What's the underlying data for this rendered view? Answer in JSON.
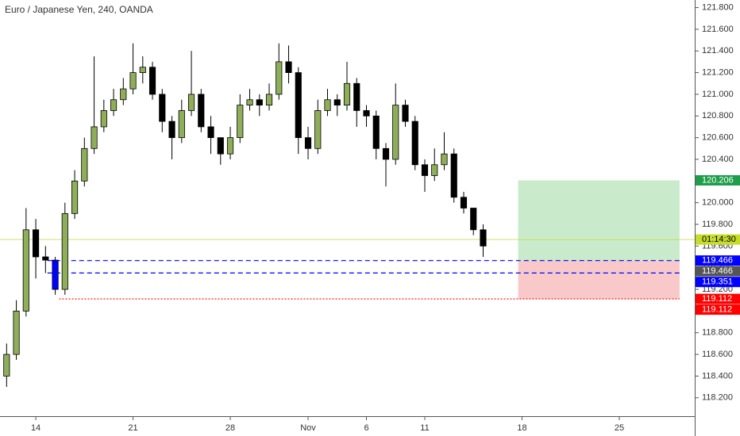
{
  "chart_data": {
    "type": "candlestick",
    "title": "Euro / Japanese Yen, 240, OANDA",
    "xlim": [
      -1.84,
      33.88
    ],
    "xticks": [
      {
        "value": 0,
        "label": "14"
      },
      {
        "value": 5,
        "label": "21"
      },
      {
        "value": 10,
        "label": "28"
      },
      {
        "value": 14,
        "label": "Nov"
      },
      {
        "value": 17,
        "label": "6"
      },
      {
        "value": 20,
        "label": "11"
      },
      {
        "value": 25,
        "label": "18"
      },
      {
        "value": 30,
        "label": "25"
      }
    ],
    "ylim": [
      118.03,
      121.87
    ],
    "yticks": [
      {
        "value": 118.2,
        "label": "118.200"
      },
      {
        "value": 118.4,
        "label": "118.400"
      },
      {
        "value": 118.6,
        "label": "118.600"
      },
      {
        "value": 118.8,
        "label": "118.800"
      },
      {
        "value": 119.0,
        "label": "119.000"
      },
      {
        "value": 119.2,
        "label": "119.200"
      },
      {
        "value": 119.4,
        "label": "119.400"
      },
      {
        "value": 119.6,
        "label": "119.600"
      },
      {
        "value": 119.8,
        "label": "119.800"
      },
      {
        "value": 120.0,
        "label": "120.000"
      },
      {
        "value": 120.2,
        "label": "120.200"
      },
      {
        "value": 120.4,
        "label": "120.400"
      },
      {
        "value": 120.6,
        "label": "120.600"
      },
      {
        "value": 120.8,
        "label": "120.800"
      },
      {
        "value": 121.0,
        "label": "121.000"
      },
      {
        "value": 121.2,
        "label": "121.200"
      },
      {
        "value": 121.4,
        "label": "121.400"
      },
      {
        "value": 121.6,
        "label": "121.600"
      },
      {
        "value": 121.8,
        "label": "121.800"
      }
    ],
    "up_color": "#8fae5a",
    "down_color": "#000000",
    "highlight": {
      "index": 5,
      "color": "#0000ff"
    },
    "x": [
      -1.5,
      -1,
      -0.5,
      0,
      0.5,
      1,
      1.5,
      2,
      2.5,
      3,
      3.5,
      4,
      4.5,
      5,
      5.5,
      6,
      6.5,
      7,
      7.5,
      8,
      8.5,
      9,
      9.5,
      10,
      10.5,
      11,
      11.5,
      12,
      12.5,
      13,
      13.5,
      14,
      14.5,
      15,
      15.5,
      16,
      16.5,
      17,
      17.5,
      18,
      18.5,
      19,
      19.5,
      20,
      20.5,
      21,
      21.5,
      22,
      22.5,
      23
    ],
    "open": [
      118.4,
      118.6,
      119.0,
      119.75,
      119.5,
      119.47,
      119.2,
      119.9,
      120.2,
      120.5,
      120.7,
      120.85,
      120.95,
      121.05,
      121.2,
      121.25,
      121.0,
      120.75,
      120.6,
      120.85,
      121.0,
      120.7,
      120.6,
      120.45,
      120.6,
      120.9,
      120.95,
      120.9,
      121.0,
      121.3,
      121.2,
      120.6,
      120.5,
      120.85,
      120.95,
      120.9,
      121.1,
      120.85,
      120.8,
      120.5,
      120.4,
      120.9,
      120.75,
      120.35,
      120.25,
      120.35,
      120.45,
      120.05,
      119.95,
      119.75
    ],
    "high": [
      118.7,
      119.1,
      119.95,
      119.85,
      119.6,
      119.5,
      120.0,
      120.3,
      120.6,
      121.35,
      120.95,
      121.05,
      121.15,
      121.47,
      121.35,
      121.3,
      121.05,
      120.8,
      120.95,
      121.4,
      121.05,
      120.8,
      120.6,
      120.7,
      121.0,
      121.05,
      121.0,
      121.1,
      121.47,
      121.45,
      121.25,
      120.7,
      120.95,
      121.05,
      121.0,
      121.3,
      121.15,
      120.9,
      120.85,
      120.55,
      121.1,
      120.95,
      120.8,
      120.4,
      120.5,
      120.65,
      120.5,
      120.1,
      119.95,
      119.8
    ],
    "low": [
      118.3,
      118.55,
      118.95,
      119.3,
      119.35,
      119.15,
      119.15,
      119.85,
      120.15,
      120.45,
      120.65,
      120.8,
      120.9,
      121.0,
      121.1,
      120.95,
      120.65,
      120.4,
      120.55,
      120.8,
      120.65,
      120.45,
      120.35,
      120.4,
      120.55,
      120.85,
      120.8,
      120.85,
      120.95,
      121.1,
      120.45,
      120.4,
      120.45,
      120.8,
      120.8,
      120.85,
      120.7,
      120.7,
      120.4,
      120.15,
      120.35,
      120.7,
      120.3,
      120.1,
      120.2,
      120.3,
      120.0,
      119.9,
      119.7,
      119.5
    ],
    "close": [
      118.6,
      119.0,
      119.75,
      119.5,
      119.47,
      119.2,
      119.9,
      120.2,
      120.5,
      120.7,
      120.85,
      120.95,
      121.05,
      121.2,
      121.25,
      121.0,
      120.75,
      120.6,
      120.85,
      121.0,
      120.7,
      120.6,
      120.45,
      120.6,
      120.9,
      120.95,
      120.9,
      121.0,
      121.3,
      121.2,
      120.6,
      120.5,
      120.85,
      120.95,
      120.9,
      121.1,
      120.85,
      120.8,
      120.5,
      120.4,
      120.9,
      120.75,
      120.35,
      120.25,
      120.35,
      120.45,
      120.05,
      119.95,
      119.75,
      119.6
    ],
    "last_price": {
      "value": 119.66,
      "color": "#c5dc2a"
    },
    "levels": [
      {
        "value": 119.466,
        "x": [
          0.6,
          33.1
        ],
        "color": "#0000ff",
        "style": "dashed"
      },
      {
        "value": 119.351,
        "x": [
          0.6,
          33.1
        ],
        "color": "#0000ff",
        "style": "dashed"
      },
      {
        "value": 119.112,
        "x": [
          1.2,
          33.1
        ],
        "color": "#ff0000",
        "style": "dotted"
      }
    ],
    "position": {
      "x": [
        24.8,
        33.1
      ],
      "target": 120.206,
      "entry": 119.466,
      "stop": 119.112,
      "profit_color": "#c9ebcb",
      "loss_color": "#f9c9c9"
    },
    "price_labels": [
      {
        "value": 120.206,
        "color": "#1e9e4a"
      },
      {
        "value": 119.66,
        "label": "01:14:30",
        "color": "#c5dc2a",
        "text_color": "#000000"
      },
      {
        "value": 119.466,
        "color": "#0000ff"
      },
      {
        "value": 119.466,
        "color": "#555555"
      },
      {
        "value": 119.351,
        "color": "#0000ff"
      },
      {
        "value": 119.112,
        "color": "#ff0000"
      },
      {
        "value": 119.112,
        "color": "#ff0000"
      }
    ]
  }
}
